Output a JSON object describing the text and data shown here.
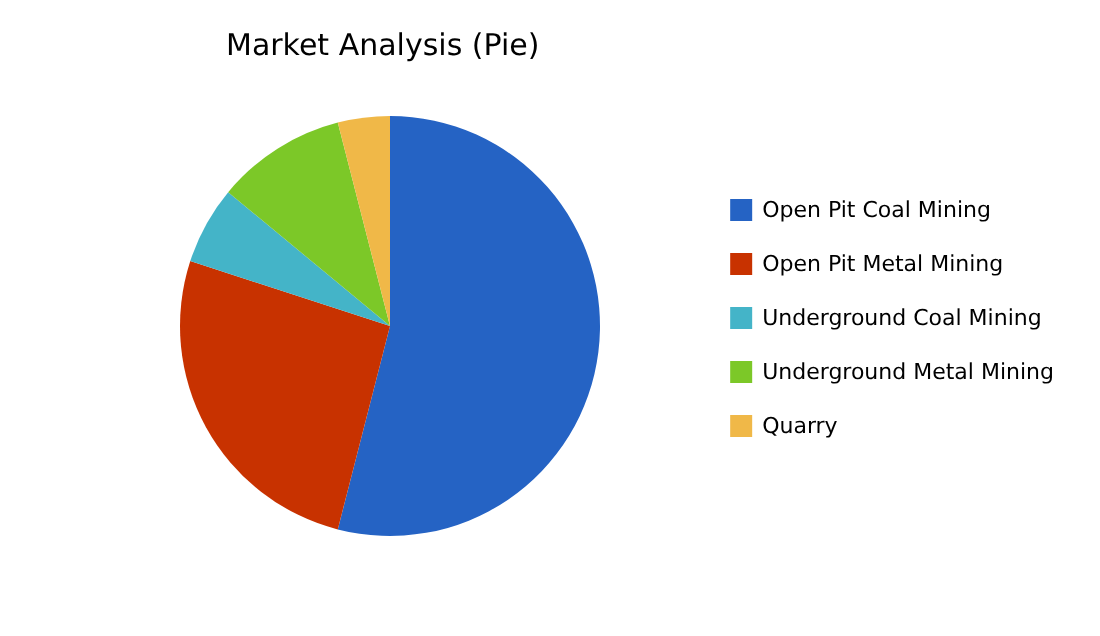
{
  "chart_data": {
    "type": "pie",
    "title": "Market Analysis (Pie)",
    "categories": [
      "Open Pit Coal Mining",
      "Open Pit Metal Mining",
      "Underground Coal Mining",
      "Underground Metal Mining",
      "Quarry"
    ],
    "values": [
      54,
      26,
      6,
      10,
      4
    ],
    "colors": [
      "#2563c4",
      "#c83200",
      "#44b4c8",
      "#7cc828",
      "#f0b848"
    ],
    "legend": "right"
  }
}
